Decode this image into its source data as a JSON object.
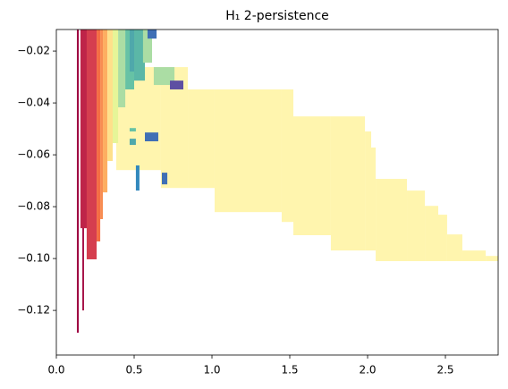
{
  "chart_data": {
    "type": "rectangles",
    "title": "H₁ 2-persistence",
    "xlim": [
      0,
      2.839
    ],
    "ylim": [
      -0.1372,
      -0.0117
    ],
    "xticks": [
      {
        "value": 0,
        "label": "0.0"
      },
      0.5,
      {
        "value": 1,
        "label": "1.0"
      },
      1.5,
      {
        "value": 2,
        "label": "2.0"
      },
      2.5
    ],
    "yticks": [
      {
        "value": -0.12,
        "label": "−0.12"
      },
      {
        "value": -0.1,
        "label": "−0.10"
      },
      {
        "value": -0.08,
        "label": "−0.08"
      },
      {
        "value": -0.06,
        "label": "−0.06"
      },
      {
        "value": -0.04,
        "label": "−0.04"
      },
      {
        "value": -0.02,
        "label": "−0.02"
      }
    ],
    "rects": [
      {
        "x0": 0.385,
        "x1": 0.672,
        "y0": -0.0659,
        "y1": -0.0262,
        "color": "#fff5ae"
      },
      {
        "x0": 0.672,
        "x1": 0.845,
        "y0": -0.0728,
        "y1": -0.0262,
        "color": "#fff5ae"
      },
      {
        "x0": 0.845,
        "x1": 1.017,
        "y0": -0.0728,
        "y1": -0.0348,
        "color": "#fff5ae"
      },
      {
        "x0": 1.017,
        "x1": 1.448,
        "y0": -0.0821,
        "y1": -0.0348,
        "color": "#fff5ae"
      },
      {
        "x0": 1.448,
        "x1": 1.523,
        "y0": -0.0859,
        "y1": -0.0348,
        "color": "#fff5ae"
      },
      {
        "x0": 1.523,
        "x1": 1.764,
        "y0": -0.091,
        "y1": -0.0452,
        "color": "#fff5ae"
      },
      {
        "x0": 1.764,
        "x1": 1.983,
        "y0": -0.0969,
        "y1": -0.0452,
        "color": "#fff5ae"
      },
      {
        "x0": 1.983,
        "x1": 2.023,
        "y0": -0.0969,
        "y1": -0.051,
        "color": "#fff5ae"
      },
      {
        "x0": 2.023,
        "x1": 2.052,
        "y0": -0.0969,
        "y1": -0.0572,
        "color": "#fff5ae"
      },
      {
        "x0": 2.052,
        "x1": 2.253,
        "y0": -0.101,
        "y1": -0.0693,
        "color": "#fff5ae"
      },
      {
        "x0": 2.253,
        "x1": 2.368,
        "y0": -0.101,
        "y1": -0.0738,
        "color": "#fff5ae"
      },
      {
        "x0": 2.368,
        "x1": 2.454,
        "y0": -0.101,
        "y1": -0.0797,
        "color": "#fff5ae"
      },
      {
        "x0": 2.454,
        "x1": 2.511,
        "y0": -0.101,
        "y1": -0.0831,
        "color": "#fff5ae"
      },
      {
        "x0": 2.511,
        "x1": 2.609,
        "y0": -0.101,
        "y1": -0.0907,
        "color": "#fff5ae"
      },
      {
        "x0": 2.609,
        "x1": 2.759,
        "y0": -0.101,
        "y1": -0.0969,
        "color": "#fff5ae"
      },
      {
        "x0": 2.759,
        "x1": 2.839,
        "y0": -0.101,
        "y1": -0.099,
        "color": "#fff5ae"
      },
      {
        "x0": 0.132,
        "x1": 0.144,
        "y0": -0.1286,
        "y1": -0.0117,
        "color": "#9e0142"
      },
      {
        "x0": 0.167,
        "x1": 0.178,
        "y0": -0.12,
        "y1": -0.0117,
        "color": "#a50f45"
      },
      {
        "x0": 0.155,
        "x1": 0.201,
        "y0": -0.0883,
        "y1": -0.0117,
        "color": "#be2449"
      },
      {
        "x0": 0.195,
        "x1": 0.259,
        "y0": -0.1003,
        "y1": -0.0117,
        "color": "#d53e4f"
      },
      {
        "x0": 0.259,
        "x1": 0.282,
        "y0": -0.0934,
        "y1": -0.0117,
        "color": "#f46d43"
      },
      {
        "x0": 0.282,
        "x1": 0.299,
        "y0": -0.0848,
        "y1": -0.0117,
        "color": "#f88d52"
      },
      {
        "x0": 0.299,
        "x1": 0.328,
        "y0": -0.0745,
        "y1": -0.0117,
        "color": "#fdae61"
      },
      {
        "x0": 0.328,
        "x1": 0.362,
        "y0": -0.0624,
        "y1": -0.0117,
        "color": "#fee08b"
      },
      {
        "x0": 0.362,
        "x1": 0.397,
        "y0": -0.0555,
        "y1": -0.0117,
        "color": "#e6f598"
      },
      {
        "x0": 0.397,
        "x1": 0.443,
        "y0": -0.0417,
        "y1": -0.0117,
        "color": "#abdda4"
      },
      {
        "x0": 0.443,
        "x1": 0.5,
        "y0": -0.0348,
        "y1": -0.0117,
        "color": "#66c2a5"
      },
      {
        "x0": 0.471,
        "x1": 0.557,
        "y0": -0.0279,
        "y1": -0.0117,
        "color": "#4fa8ab"
      },
      {
        "x0": 0.5,
        "x1": 0.569,
        "y0": -0.0314,
        "y1": -0.0117,
        "color": "#5bb7a7"
      },
      {
        "x0": 0.557,
        "x1": 0.615,
        "y0": -0.0245,
        "y1": -0.0117,
        "color": "#abdda4"
      },
      {
        "x0": 0.586,
        "x1": 0.644,
        "y0": -0.0152,
        "y1": -0.0117,
        "color": "#3f6fb5"
      },
      {
        "x0": 0.626,
        "x1": 0.759,
        "y0": -0.0331,
        "y1": -0.0262,
        "color": "#abdda4"
      },
      {
        "x0": 0.73,
        "x1": 0.816,
        "y0": -0.0348,
        "y1": -0.0314,
        "color": "#5e4fa2"
      },
      {
        "x0": 0.569,
        "x1": 0.655,
        "y0": -0.0548,
        "y1": -0.0514,
        "color": "#3f6fb5"
      },
      {
        "x0": 0.678,
        "x1": 0.713,
        "y0": -0.0714,
        "y1": -0.0669,
        "color": "#3f6fb5"
      },
      {
        "x0": 0.511,
        "x1": 0.534,
        "y0": -0.0738,
        "y1": -0.0641,
        "color": "#3288bd"
      },
      {
        "x0": 0.471,
        "x1": 0.511,
        "y0": -0.051,
        "y1": -0.0497,
        "color": "#66c2a5"
      },
      {
        "x0": 0.471,
        "x1": 0.511,
        "y0": -0.0562,
        "y1": -0.0538,
        "color": "#4fa8ab"
      }
    ]
  }
}
